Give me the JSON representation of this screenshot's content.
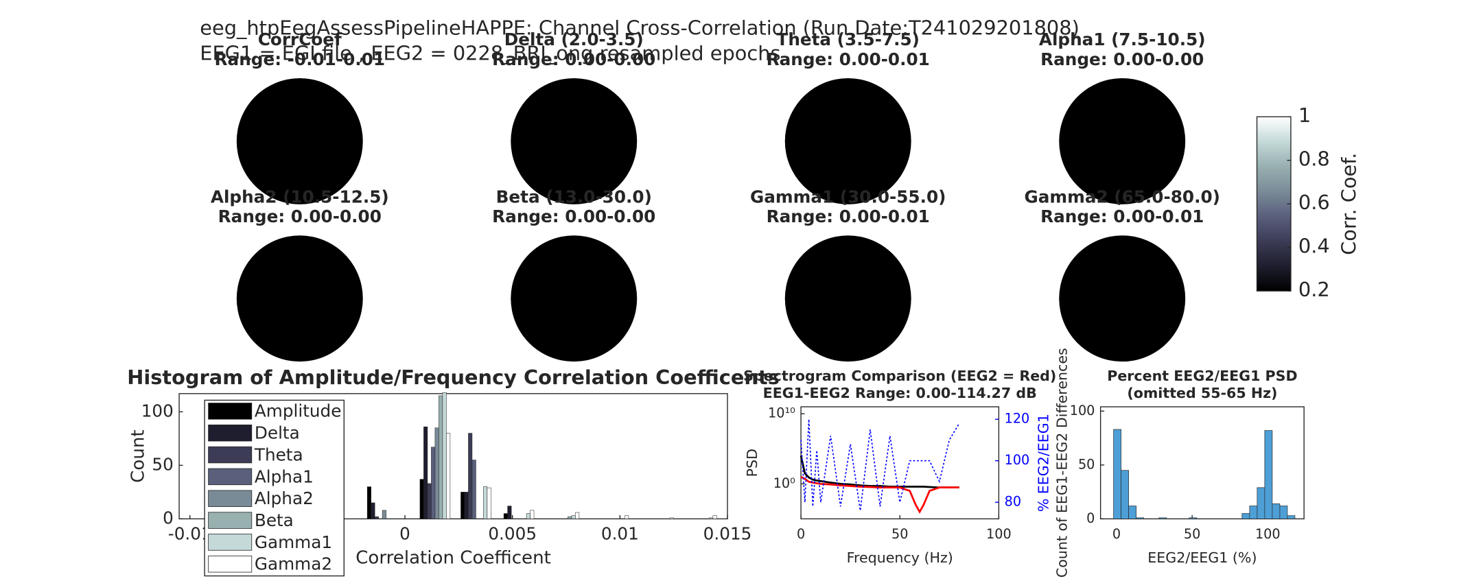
{
  "figure_title": [
    "eeg_htpEegAssessPipelineHAPPE: Channel Cross-Correlation (Run Date:T241029201808)",
    "EEG1 = EGI file , EEG2 = 0228_BRI_ong resampled epochs"
  ],
  "chart_data": [
    {
      "type": "topomap",
      "color": "#000000",
      "panels": [
        {
          "title": "CorrCoef",
          "subtitle": "Range: -0.01-0.01"
        },
        {
          "title": "Delta (2.0-3.5)",
          "subtitle": "Range: 0.00-0.00"
        },
        {
          "title": "Theta (3.5-7.5)",
          "subtitle": "Range: 0.00-0.01"
        },
        {
          "title": "Alpha1 (7.5-10.5)",
          "subtitle": "Range: 0.00-0.00"
        },
        {
          "title": "Alpha2 (10.5-12.5)",
          "subtitle": "Range: 0.00-0.00"
        },
        {
          "title": "Beta (13.0-30.0)",
          "subtitle": "Range: 0.00-0.00"
        },
        {
          "title": "Gamma1 (30.0-55.0)",
          "subtitle": "Range: 0.00-0.01"
        },
        {
          "title": "Gamma2 (65.0-80.0)",
          "subtitle": "Range: 0.00-0.01"
        }
      ],
      "colorbar_label": "Corr. Coef.",
      "clim": [
        0.2,
        1
      ],
      "cticks": [
        0.2,
        0.4,
        0.6,
        0.8,
        1
      ],
      "colormap": [
        "#000000",
        "#1e1e2e",
        "#3c3c56",
        "#5a5f7c",
        "#7a8b98",
        "#98b0b0",
        "#c5d9d9",
        "#ffffff"
      ]
    },
    {
      "type": "grouped_bar",
      "title": "Histogram of Amplitude/Frequency Correlation Coefficents",
      "x_label": "Correlation Coefficent",
      "y_label": "Count",
      "x": [
        -0.00105,
        0.0014,
        0.0033,
        0.0053,
        0.0074,
        0.0097,
        0.0118,
        0.0138
      ],
      "series": [
        {
          "name": "Amplitude",
          "color": "#000000",
          "values": [
            30,
            37,
            25,
            5,
            0,
            0,
            0,
            0
          ]
        },
        {
          "name": "Delta",
          "color": "#1e1e2e",
          "values": [
            15,
            86,
            25,
            12,
            0,
            0,
            0,
            0
          ]
        },
        {
          "name": "Theta",
          "color": "#3c3c56",
          "values": [
            2,
            33,
            80,
            0,
            0,
            0,
            0,
            0
          ]
        },
        {
          "name": "Alpha1",
          "color": "#5a5f7c",
          "values": [
            0,
            67,
            55,
            0,
            0,
            0,
            0,
            0
          ]
        },
        {
          "name": "Alpha2",
          "color": "#7a8b98",
          "values": [
            8,
            85,
            0,
            0,
            0,
            0,
            0,
            0
          ]
        },
        {
          "name": "Beta",
          "color": "#98b0b0",
          "values": [
            0,
            115,
            0,
            0,
            2,
            0,
            0,
            0
          ]
        },
        {
          "name": "Gamma1",
          "color": "#c5d9d9",
          "values": [
            0,
            118,
            30,
            5,
            3,
            0,
            0,
            1
          ]
        },
        {
          "name": "Gamma2",
          "color": "#ffffff",
          "values": [
            0,
            80,
            29,
            8,
            6,
            3,
            1,
            3
          ]
        }
      ],
      "xlim": [
        -0.0105,
        0.015
      ],
      "xticks": [
        -0.01,
        -0.005,
        0,
        0.005,
        0.01,
        0.015
      ],
      "ylim": [
        0,
        117
      ],
      "yticks": [
        0,
        50,
        100
      ],
      "legend": "upper-left"
    },
    {
      "type": "line",
      "title": "Spectrogram Comparison (EEG2 = Red)",
      "subtitle": "EEG1-EEG2 Range: 0.00-114.27 dB",
      "x_label": "Frequency (Hz)",
      "y_label": "PSD",
      "y2_label": "% EEG2/EEG1",
      "y2_color": "#0000ff",
      "x": [
        0,
        2,
        4,
        6,
        8,
        10,
        15,
        20,
        25,
        30,
        35,
        40,
        45,
        50,
        55,
        58,
        60,
        62,
        65,
        70,
        75,
        80
      ],
      "series": [
        {
          "color": "#000000",
          "values": [
            10000,
            30,
            8,
            4,
            3,
            2.5,
            1.5,
            1,
            0.8,
            0.6,
            0.5,
            0.5,
            0.4,
            0.4,
            0.4,
            0.4,
            0.4,
            0.4,
            0.35,
            0.3,
            0.3,
            0.3
          ]
        },
        {
          "color": "#ff0000",
          "values": [
            10,
            5,
            2,
            1.5,
            1.2,
            1,
            0.8,
            0.6,
            0.5,
            0.4,
            0.35,
            0.3,
            0.3,
            0.3,
            0.1,
            0.001,
            0.0001,
            0.001,
            0.1,
            0.3,
            0.3,
            0.3
          ]
        },
        {
          "color": "#0000ff",
          "axis": "y2",
          "dashed": true,
          "values": [
            110,
            80,
            120,
            78,
            105,
            80,
            112,
            78,
            108,
            76,
            115,
            78,
            112,
            80,
            100,
            100,
            100,
            100,
            100,
            90,
            110,
            118
          ]
        }
      ],
      "xlim": [
        0,
        100
      ],
      "xticks": [
        0,
        50,
        100
      ],
      "ylog": true,
      "ylim": [
        1e-05,
        100000000000
      ],
      "yticks": [
        {
          "value": 1,
          "label": "10⁰"
        },
        {
          "value": 10000000000,
          "label": "10¹⁰"
        }
      ],
      "y2lim": [
        72,
        126
      ],
      "y2ticks": [
        80,
        100,
        120
      ]
    },
    {
      "type": "histogram",
      "title": "Percent EEG2/EEG1 PSD",
      "subtitle": "(omitted 55-65 Hz)",
      "x_label": "EEG2/EEG1 (%)",
      "y_label": "Count of EEG1-EEG2 Differences",
      "color": "#4d9fd6",
      "bins": [
        -2,
        3,
        8,
        13,
        18,
        23,
        28,
        33,
        38,
        43,
        48,
        53,
        58,
        63,
        68,
        73,
        78,
        83,
        88,
        93,
        98,
        103,
        108,
        113,
        118
      ],
      "counts": [
        83,
        45,
        12,
        1,
        0,
        0,
        1,
        0,
        0,
        0,
        1,
        0,
        0,
        0,
        0,
        0,
        0,
        5,
        12,
        29,
        82,
        14,
        12,
        3
      ],
      "xlim": [
        -10.6,
        124
      ],
      "xticks": [
        0,
        50,
        100
      ],
      "ylim": [
        0,
        104
      ],
      "yticks": [
        0,
        50,
        100
      ]
    }
  ]
}
